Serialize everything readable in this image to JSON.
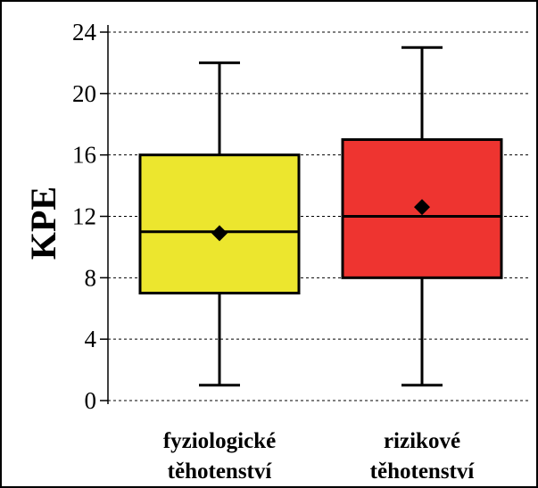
{
  "chart_data": {
    "type": "box",
    "ylabel": "KPE",
    "xlabel": "",
    "ylim": [
      0,
      24
    ],
    "yticks": [
      "0",
      "4",
      "8",
      "12",
      "16",
      "20",
      "24"
    ],
    "grid": true,
    "categories": [
      {
        "line1": "fyziologické",
        "line2": "těhotenství"
      },
      {
        "line1": "rizikové",
        "line2": "těhotenství"
      }
    ],
    "boxes": [
      {
        "min": 1,
        "q1": 7,
        "median": 11,
        "q3": 16,
        "max": 22,
        "mean": 10.9,
        "color": "#ece62e"
      },
      {
        "min": 1,
        "q1": 8,
        "median": 12,
        "q3": 17,
        "max": 23,
        "mean": 12.6,
        "color": "#ee3430"
      }
    ]
  }
}
